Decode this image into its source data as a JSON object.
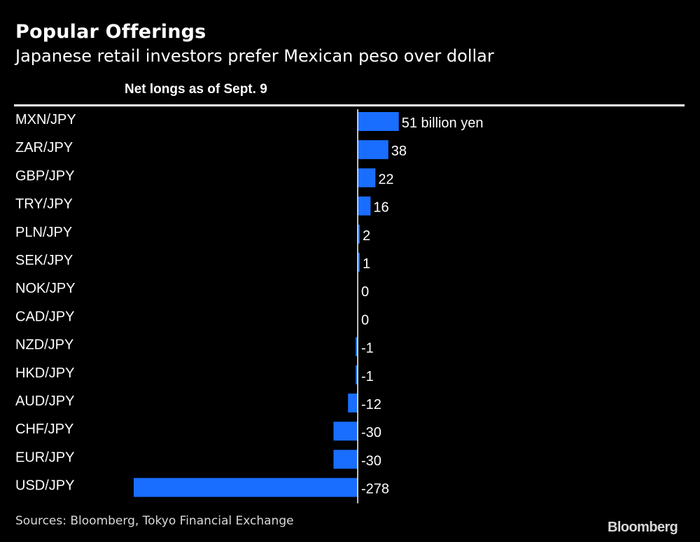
{
  "title": "Popular Offerings",
  "subtitle": "Japanese retail investors prefer Mexican peso over dollar",
  "column_header": "Net longs as of Sept. 9",
  "source": "Sources: Bloomberg, Tokyo Financial Exchange",
  "logo": "Bloomberg",
  "colors": {
    "background": "#000000",
    "bar": "#1a6eff",
    "text": "#ffffff"
  },
  "chart_data": {
    "type": "bar",
    "orientation": "horizontal",
    "title": "Popular Offerings",
    "subtitle": "Japanese retail investors prefer Mexican peso over dollar",
    "column_header": "Net longs as of Sept. 9",
    "unit": "billion yen",
    "categories": [
      "MXN/JPY",
      "ZAR/JPY",
      "GBP/JPY",
      "TRY/JPY",
      "PLN/JPY",
      "SEK/JPY",
      "NOK/JPY",
      "CAD/JPY",
      "NZD/JPY",
      "HKD/JPY",
      "AUD/JPY",
      "CHF/JPY",
      "EUR/JPY",
      "USD/JPY"
    ],
    "values": [
      51,
      38,
      22,
      16,
      2,
      1,
      0,
      0,
      -1,
      -1,
      -12,
      -30,
      -30,
      -278
    ],
    "value_labels": [
      "51 billion yen",
      "38",
      "22",
      "16",
      "2",
      "1",
      "0",
      "0",
      "-1",
      "-1",
      "-12",
      "-30",
      "-30",
      "-278"
    ],
    "xlim": [
      -278,
      51
    ],
    "grid": false,
    "legend": "none"
  }
}
